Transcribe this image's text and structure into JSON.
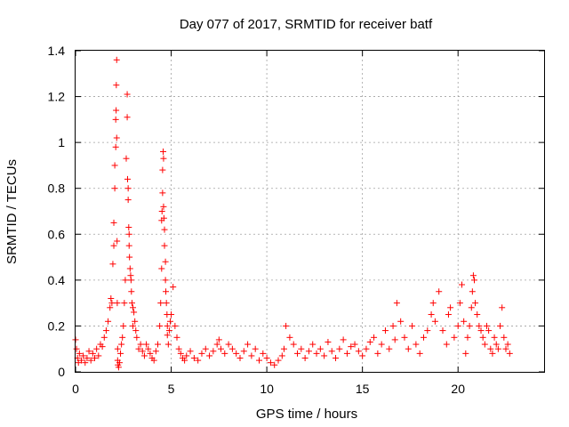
{
  "chart_data": {
    "type": "scatter",
    "title": "Day 077 of 2017, SRMTID for receiver batf",
    "xlabel": "GPS time / hours",
    "ylabel": "SRMTID / TECUs",
    "xlim": [
      0,
      24.5
    ],
    "ylim": [
      0,
      1.4
    ],
    "xticks": [
      0,
      5,
      10,
      15,
      20
    ],
    "xtick_labels": [
      "0",
      "5",
      "10",
      "15",
      "20"
    ],
    "yticks": [
      0,
      0.2,
      0.4,
      0.6,
      0.8,
      1.0,
      1.2,
      1.4
    ],
    "ytick_labels": [
      "0",
      "0.2",
      "0.4",
      "0.6",
      "0.8",
      "1",
      "1.2",
      "1.4"
    ],
    "grid": true,
    "marker": "+",
    "marker_color": "#ff0000",
    "series": [
      {
        "name": "SRMTID",
        "x": [
          0.0,
          0.05,
          0.1,
          0.15,
          0.2,
          0.3,
          0.4,
          0.5,
          0.6,
          0.7,
          0.8,
          0.9,
          1.0,
          1.1,
          1.2,
          1.3,
          1.4,
          1.5,
          1.6,
          1.7,
          1.8,
          1.85,
          1.9,
          1.95,
          2.0,
          2.0,
          2.05,
          2.05,
          2.1,
          2.1,
          2.12,
          2.13,
          2.15,
          2.15,
          2.17,
          2.18,
          2.2,
          2.2,
          2.22,
          2.25,
          2.3,
          2.35,
          2.4,
          2.45,
          2.5,
          2.55,
          2.6,
          2.65,
          2.7,
          2.7,
          2.72,
          2.75,
          2.75,
          2.78,
          2.8,
          2.8,
          2.82,
          2.85,
          2.88,
          2.9,
          2.92,
          2.95,
          3.0,
          3.0,
          3.05,
          3.1,
          3.15,
          3.2,
          3.3,
          3.4,
          3.5,
          3.6,
          3.7,
          3.8,
          3.9,
          4.0,
          4.1,
          4.2,
          4.3,
          4.4,
          4.45,
          4.5,
          4.5,
          4.52,
          4.55,
          4.55,
          4.58,
          4.6,
          4.6,
          4.62,
          4.65,
          4.65,
          4.7,
          4.7,
          4.72,
          4.75,
          4.78,
          4.8,
          4.8,
          4.85,
          4.9,
          4.95,
          5.0,
          5.1,
          5.2,
          5.3,
          5.4,
          5.5,
          5.6,
          5.7,
          5.8,
          6.0,
          6.2,
          6.4,
          6.6,
          6.8,
          7.0,
          7.2,
          7.4,
          7.5,
          7.6,
          7.8,
          8.0,
          8.2,
          8.4,
          8.6,
          8.8,
          9.0,
          9.2,
          9.4,
          9.6,
          9.8,
          10.0,
          10.2,
          10.4,
          10.6,
          10.8,
          10.9,
          11.0,
          11.2,
          11.4,
          11.6,
          11.8,
          12.0,
          12.2,
          12.4,
          12.6,
          12.8,
          13.0,
          13.2,
          13.4,
          13.6,
          13.8,
          14.0,
          14.2,
          14.4,
          14.6,
          14.8,
          15.0,
          15.2,
          15.4,
          15.6,
          15.8,
          16.0,
          16.2,
          16.4,
          16.6,
          16.7,
          16.8,
          17.0,
          17.2,
          17.4,
          17.6,
          17.8,
          18.0,
          18.2,
          18.4,
          18.6,
          18.7,
          18.8,
          19.0,
          19.2,
          19.4,
          19.5,
          19.6,
          19.8,
          20.0,
          20.1,
          20.2,
          20.3,
          20.4,
          20.5,
          20.6,
          20.7,
          20.75,
          20.8,
          20.85,
          20.9,
          21.0,
          21.1,
          21.2,
          21.3,
          21.4,
          21.5,
          21.6,
          21.7,
          21.8,
          21.9,
          22.0,
          22.1,
          22.2,
          22.3,
          22.4,
          22.5,
          22.6,
          22.7
        ],
        "y": [
          0.14,
          0.1,
          0.06,
          0.04,
          0.08,
          0.05,
          0.07,
          0.04,
          0.06,
          0.09,
          0.05,
          0.08,
          0.06,
          0.1,
          0.07,
          0.12,
          0.11,
          0.15,
          0.18,
          0.22,
          0.28,
          0.32,
          0.3,
          0.47,
          0.55,
          0.65,
          0.8,
          0.9,
          0.98,
          1.1,
          1.14,
          1.25,
          1.36,
          1.02,
          0.57,
          0.3,
          0.1,
          0.05,
          0.03,
          0.02,
          0.04,
          0.08,
          0.12,
          0.15,
          0.2,
          0.3,
          0.4,
          0.93,
          1.21,
          1.11,
          0.84,
          0.8,
          0.75,
          0.63,
          0.6,
          0.55,
          0.5,
          0.45,
          0.42,
          0.4,
          0.35,
          0.3,
          0.28,
          0.2,
          0.26,
          0.22,
          0.18,
          0.15,
          0.1,
          0.12,
          0.09,
          0.07,
          0.12,
          0.1,
          0.08,
          0.06,
          0.05,
          0.09,
          0.12,
          0.2,
          0.3,
          0.45,
          0.66,
          0.7,
          0.78,
          0.88,
          0.96,
          0.93,
          0.72,
          0.67,
          0.62,
          0.55,
          0.48,
          0.4,
          0.35,
          0.3,
          0.25,
          0.2,
          0.16,
          0.12,
          0.18,
          0.22,
          0.25,
          0.37,
          0.2,
          0.15,
          0.1,
          0.08,
          0.06,
          0.05,
          0.07,
          0.09,
          0.06,
          0.05,
          0.08,
          0.1,
          0.07,
          0.09,
          0.12,
          0.14,
          0.1,
          0.08,
          0.12,
          0.1,
          0.08,
          0.06,
          0.09,
          0.12,
          0.07,
          0.1,
          0.05,
          0.08,
          0.06,
          0.04,
          0.03,
          0.05,
          0.07,
          0.1,
          0.2,
          0.15,
          0.12,
          0.08,
          0.1,
          0.06,
          0.09,
          0.12,
          0.08,
          0.1,
          0.07,
          0.13,
          0.09,
          0.06,
          0.1,
          0.14,
          0.08,
          0.11,
          0.12,
          0.09,
          0.07,
          0.1,
          0.13,
          0.15,
          0.08,
          0.12,
          0.18,
          0.1,
          0.2,
          0.14,
          0.3,
          0.22,
          0.15,
          0.1,
          0.2,
          0.12,
          0.08,
          0.15,
          0.18,
          0.25,
          0.3,
          0.22,
          0.35,
          0.18,
          0.12,
          0.25,
          0.28,
          0.15,
          0.2,
          0.3,
          0.38,
          0.22,
          0.08,
          0.15,
          0.2,
          0.28,
          0.35,
          0.42,
          0.4,
          0.3,
          0.25,
          0.2,
          0.18,
          0.15,
          0.12,
          0.2,
          0.18,
          0.1,
          0.08,
          0.15,
          0.12,
          0.1,
          0.2,
          0.28,
          0.15,
          0.1,
          0.12,
          0.08
        ]
      }
    ]
  }
}
